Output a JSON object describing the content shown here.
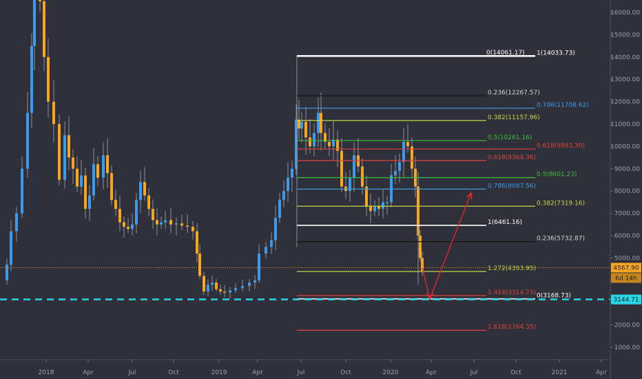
{
  "colors": {
    "background": "#2f3039",
    "up_candle": "#3d9be9",
    "down_candle": "#f5a623",
    "axis_text": "#9ea2ad",
    "support_line": "#27d7e6",
    "price_line": "#f5a623",
    "arrow": "#e0282e"
  },
  "chart_data": {
    "type": "candlestick",
    "symbol_note": "BTC price with Fibonacci retracement / extension levels",
    "y_axis": {
      "ticks": [
        "16000.00",
        "15000.00",
        "14000.00",
        "13000.00",
        "12000.00",
        "11000.00",
        "10000.00",
        "9000.00",
        "8000.00",
        "7000.00",
        "6000.00",
        "5000.00",
        "4000.00",
        "3000.00",
        "2000.00",
        "1000.00"
      ],
      "range": [
        600,
        16400
      ]
    },
    "x_axis": {
      "ticks": [
        "2018",
        "Apr",
        "Jul",
        "Oct",
        "2019",
        "Apr",
        "Jul",
        "Oct",
        "2020",
        "Apr",
        "Jul",
        "Oct",
        "2021",
        "Apr"
      ]
    },
    "current_price": {
      "label": "4567.90",
      "value": 4567.9,
      "countdown": "6d 14h"
    },
    "support": {
      "label": "3144.71",
      "value": 3144.71
    },
    "fib_levels": [
      {
        "label": "0(14061.17)",
        "value": 14061.17,
        "color": "#ffffff"
      },
      {
        "label": "1(14033.73)",
        "value": 14033.73,
        "color": "#ffffff"
      },
      {
        "label": "0.236(12267.57)",
        "value": 12267.57,
        "color": "#111111"
      },
      {
        "label": "0.786(11708.62)",
        "value": 11708.62,
        "color": "#3d9be9"
      },
      {
        "label": "0.382(11157.96)",
        "value": 11157.96,
        "color": "#c6d84a"
      },
      {
        "label": "0.5(10261.16)",
        "value": 10261.16,
        "color": "#3fbf3f"
      },
      {
        "label": "0.618(9883.30)",
        "value": 9883.3,
        "color": "#e0423e"
      },
      {
        "label": "0.618(9364.36)",
        "value": 9364.36,
        "color": "#e0423e"
      },
      {
        "label": "0.5(8601.23)",
        "value": 8601.23,
        "color": "#3fbf3f"
      },
      {
        "label": "0.786(8087.56)",
        "value": 8087.56,
        "color": "#3d9be9"
      },
      {
        "label": "0.382(7319.16)",
        "value": 7319.16,
        "color": "#c6d84a"
      },
      {
        "label": "1(6461.16)",
        "value": 6461.16,
        "color": "#ffffff"
      },
      {
        "label": "0.236(5732.87)",
        "value": 5732.87,
        "color": "#111111"
      },
      {
        "label": "1.272(4393.95)",
        "value": 4393.95,
        "color": "#c6d84a"
      },
      {
        "label": "1.414(3314.73)",
        "value": 3314.73,
        "color": "#e0423e"
      },
      {
        "label": "0(3168.73)",
        "value": 3168.73,
        "color": "#ffffff"
      },
      {
        "label": "1.618(1764.35)",
        "value": 1764.35,
        "color": "#e0423e"
      }
    ],
    "projection_arrow": {
      "points": [
        [
          4567.9,
          "start"
        ],
        [
          3168.73,
          "low"
        ],
        [
          7919.0,
          "target"
        ]
      ]
    },
    "grid": false,
    "legend": "none"
  }
}
